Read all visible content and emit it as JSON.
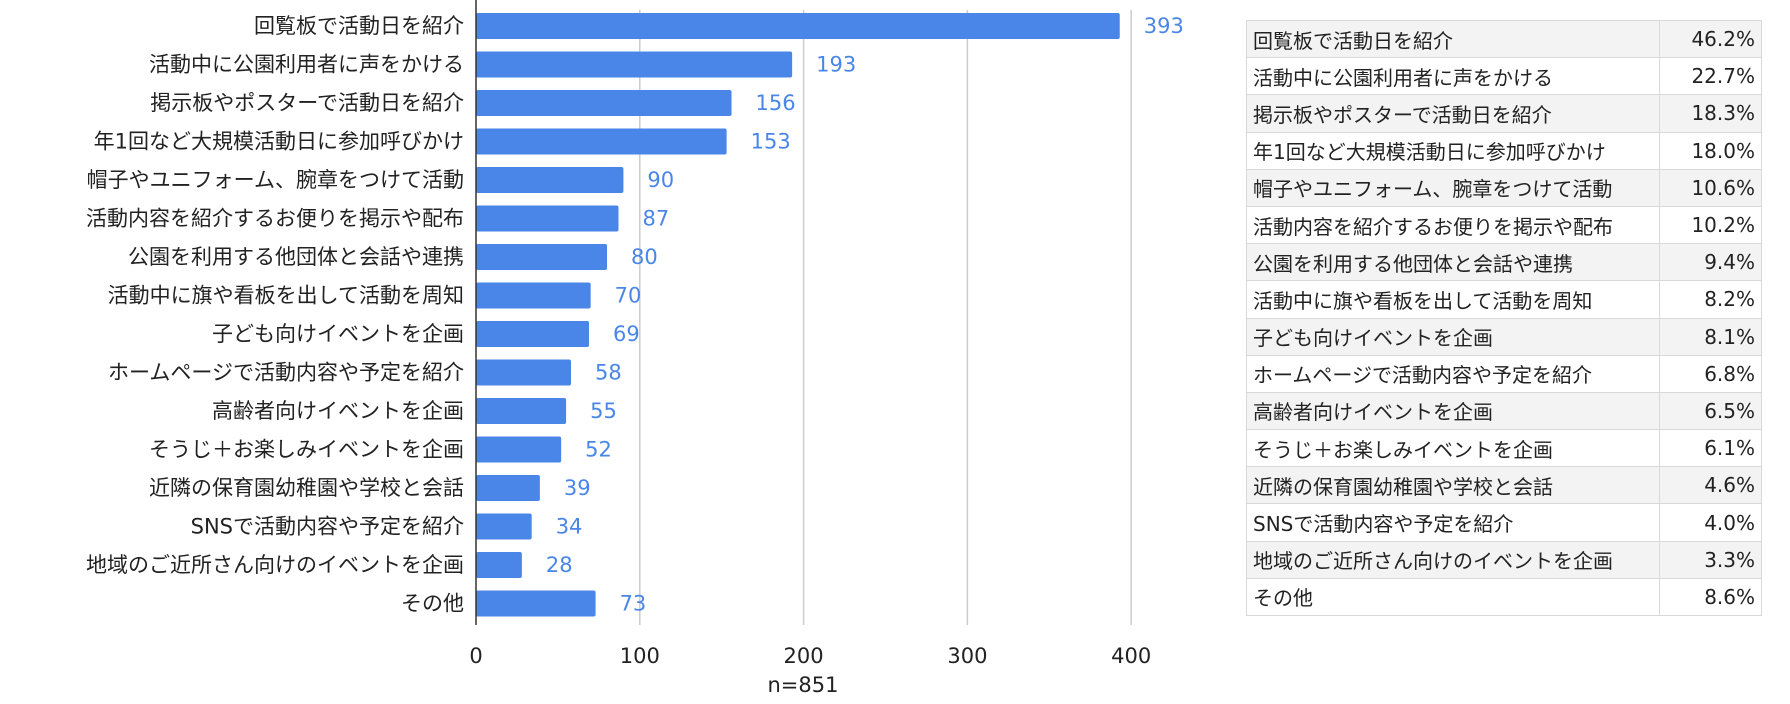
{
  "chart_data": {
    "type": "bar",
    "orientation": "horizontal",
    "categories": [
      "回覧板で活動日を紹介",
      "活動中に公園利用者に声をかける",
      "掲示板やポスターで活動日を紹介",
      "年1回など大規模活動日に参加呼びかけ",
      "帽子やユニフォーム、腕章をつけて活動",
      "活動内容を紹介するお便りを掲示や配布",
      "公園を利用する他団体と会話や連携",
      "活動中に旗や看板を出して活動を周知",
      "子ども向けイベントを企画",
      "ホームページで活動内容や予定を紹介",
      "高齢者向けイベントを企画",
      "そうじ＋お楽しみイベントを企画",
      "近隣の保育園幼稚園や学校と会話",
      "SNSで活動内容や予定を紹介",
      "地域のご近所さん向けのイベントを企画",
      "その他"
    ],
    "values": [
      393,
      193,
      156,
      153,
      90,
      87,
      80,
      70,
      69,
      58,
      55,
      52,
      39,
      34,
      28,
      73
    ],
    "percentages": [
      "46.2%",
      "22.7%",
      "18.3%",
      "18.0%",
      "10.6%",
      "10.2%",
      "9.4%",
      "8.2%",
      "8.1%",
      "6.8%",
      "6.5%",
      "6.1%",
      "4.6%",
      "4.0%",
      "3.3%",
      "8.6%"
    ],
    "xlabel": "n=851",
    "xlim": [
      0,
      420
    ],
    "xticks": [
      0,
      100,
      200,
      300,
      400
    ],
    "grid": true,
    "bar_color": "#4a86e8",
    "label_color": "#4a86e8"
  }
}
